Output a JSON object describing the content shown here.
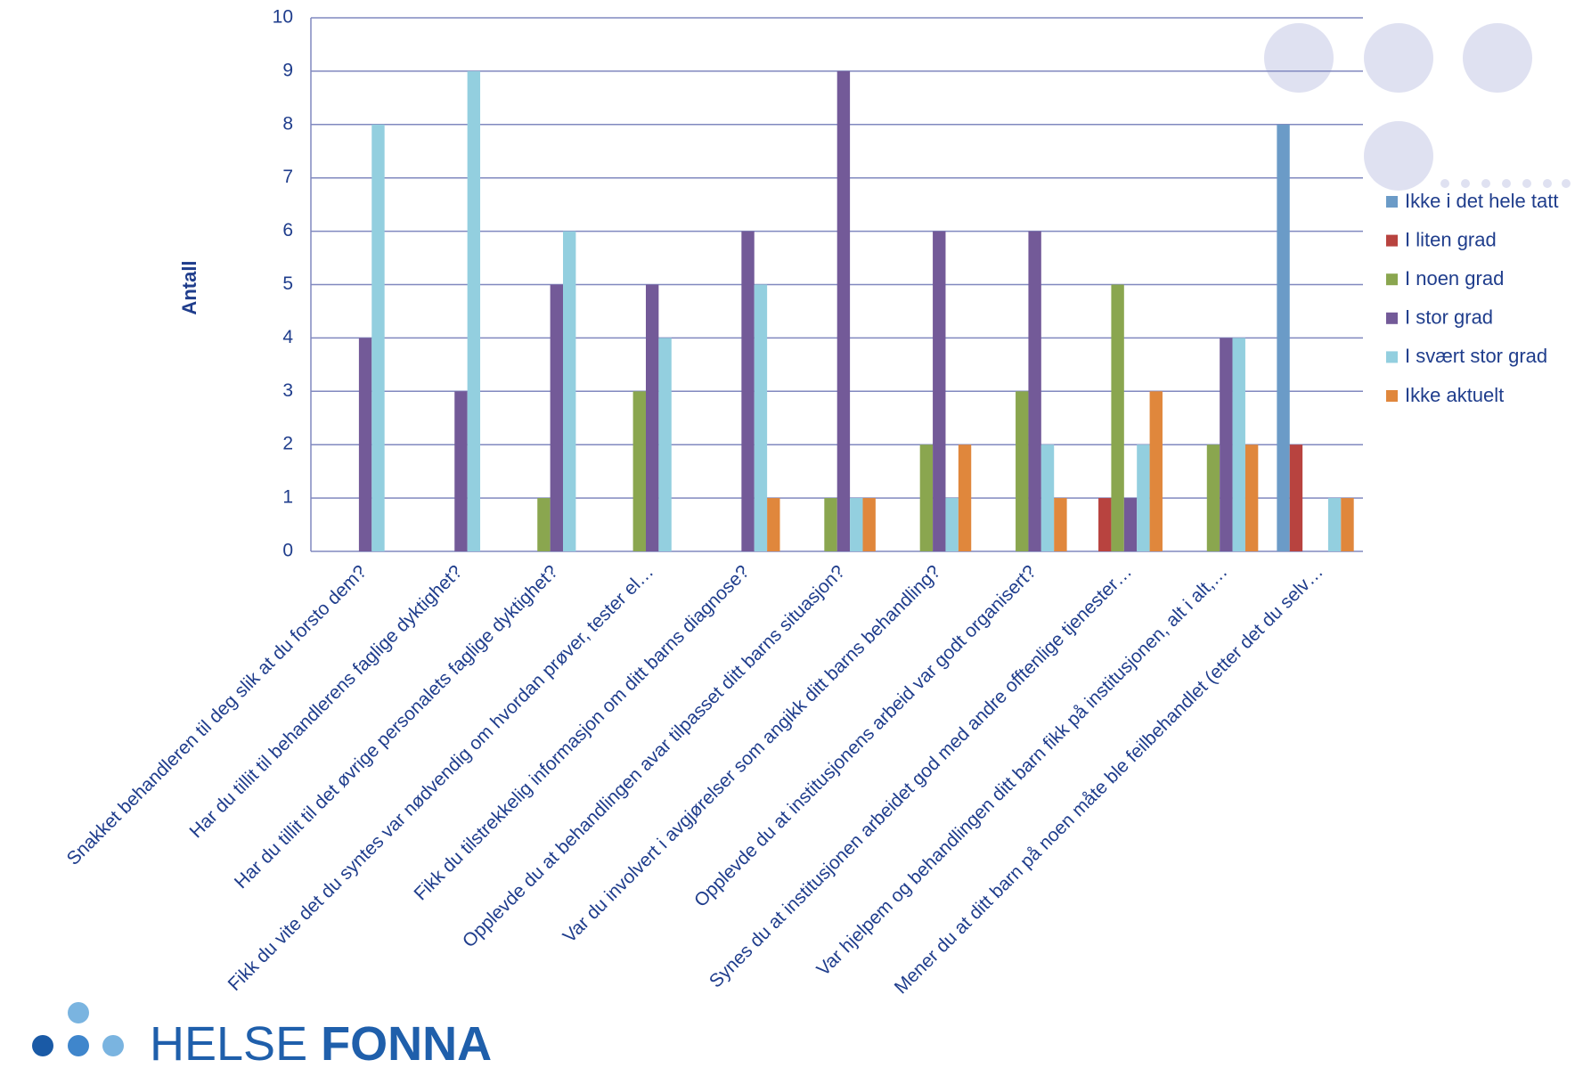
{
  "chart_data": {
    "type": "bar",
    "ylabel": "Antall",
    "categories": [
      "Snakket behandleren til deg slik at du forsto dem?",
      "Har du tillit til behandlerens faglige dyktighet?",
      "Har du tillit til det øvrige personalets faglige dyktighet?",
      "Fikk du vite det du syntes var nødvendig om hvordan prøver, tester el…",
      "Fikk du tilstrekkelig informasjon om ditt barns diagnose?",
      "Opplevde du at behandlingen avar tilpasset ditt barns situasjon?",
      "Var du involvert i avgjørelser som angikk ditt barns behandling?",
      "Opplevde du at institusjonens arbeid var godt organisert?",
      "Synes du at institusjonen arbeidet god med andre offtenlige tjenester…",
      "Var hjelpem og behandlingen ditt barn fikk på institusjonen, alt i alt,…",
      "Mener du at ditt barn på noen måte ble feilbehandlet (etter det du selv…"
    ],
    "series": [
      {
        "name": "Ikke i det hele tatt",
        "color": "#6b9bc7",
        "values": [
          0,
          0,
          0,
          0,
          0,
          0,
          0,
          0,
          0,
          0,
          8
        ]
      },
      {
        "name": "I liten grad",
        "color": "#b8433f",
        "values": [
          0,
          0,
          0,
          0,
          0,
          0,
          0,
          0,
          1,
          0,
          2
        ]
      },
      {
        "name": "I noen grad",
        "color": "#8aa64f",
        "values": [
          0,
          0,
          1,
          3,
          0,
          1,
          2,
          3,
          5,
          2,
          0
        ]
      },
      {
        "name": "I stor grad",
        "color": "#735a98",
        "values": [
          4,
          3,
          5,
          5,
          6,
          9,
          6,
          6,
          1,
          4,
          0
        ]
      },
      {
        "name": "I svært stor grad",
        "color": "#93cfdf",
        "values": [
          8,
          9,
          6,
          4,
          5,
          1,
          1,
          2,
          2,
          4,
          1
        ]
      },
      {
        "name": "Ikke aktuelt",
        "color": "#e0873c",
        "values": [
          0,
          0,
          0,
          0,
          1,
          1,
          2,
          1,
          3,
          2,
          1
        ]
      }
    ],
    "ylim": [
      0,
      10
    ],
    "yticks": [
      0,
      1,
      2,
      3,
      4,
      5,
      6,
      7,
      8,
      9,
      10
    ],
    "grid": true,
    "logo": {
      "light": "HELSE",
      "bold": "FONNA"
    }
  }
}
